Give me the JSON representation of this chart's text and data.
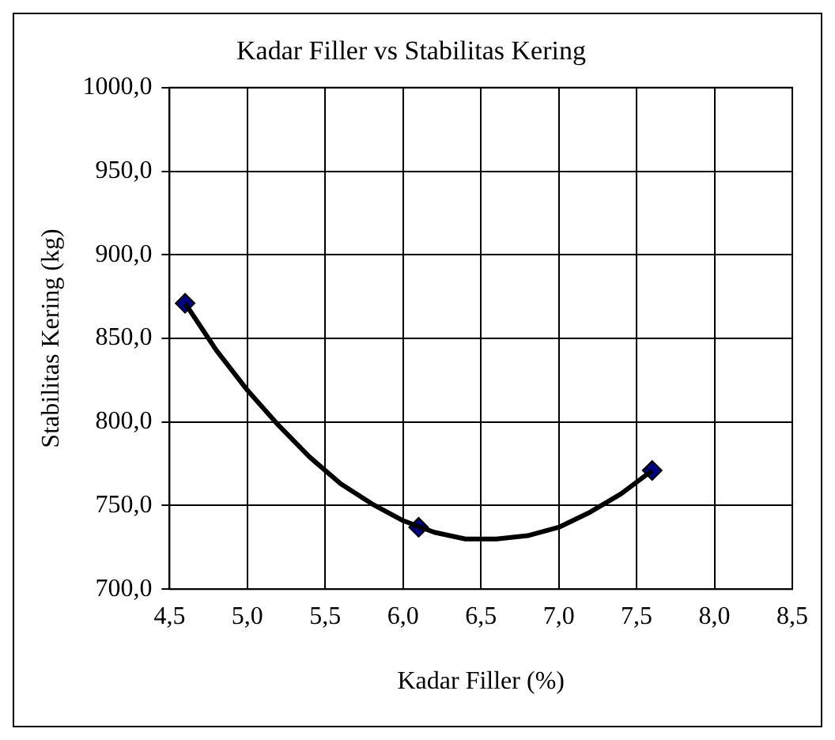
{
  "chart_data": {
    "type": "line",
    "title": "Kadar Filler vs Stabilitas Kering",
    "xlabel": "Kadar Filler (%)",
    "ylabel": "Stabilitas Kering (kg)",
    "xlim": [
      4.5,
      8.5
    ],
    "xticks": [
      {
        "value": 4.5,
        "label": "4,5"
      },
      {
        "value": 5,
        "label": "5,0"
      },
      {
        "value": 5.5,
        "label": "5,5"
      },
      {
        "value": 6,
        "label": "6,0"
      },
      {
        "value": 6.5,
        "label": "6,5"
      },
      {
        "value": 7,
        "label": "7,0"
      },
      {
        "value": 7.5,
        "label": "7,5"
      },
      {
        "value": 8,
        "label": "8,0"
      },
      {
        "value": 8.5,
        "label": "8,5"
      }
    ],
    "ylim": [
      700,
      1000
    ],
    "yticks": [
      {
        "value": 700,
        "label": "700,0"
      },
      {
        "value": 750,
        "label": "750,0"
      },
      {
        "value": 800,
        "label": "800,0"
      },
      {
        "value": 850,
        "label": "850,0"
      },
      {
        "value": 900,
        "label": "900,0"
      },
      {
        "value": 950,
        "label": "950,0"
      },
      {
        "value": 1000,
        "label": "1000,0"
      }
    ],
    "grid": true,
    "legend": false,
    "series": [
      {
        "type": "line",
        "color": "#000000",
        "marker": "none",
        "x": [
          4.6,
          4.8,
          5.0,
          5.2,
          5.4,
          5.6,
          5.8,
          6.0,
          6.2,
          6.4,
          6.6,
          6.8,
          7.0,
          7.2,
          7.4,
          7.6
        ],
        "values": [
          871,
          843,
          819,
          798,
          779,
          763,
          751,
          741,
          734,
          730,
          730,
          732,
          737,
          746,
          757,
          771
        ]
      },
      {
        "type": "scatter",
        "color": "#000080",
        "marker": "diamond",
        "x": [
          4.6,
          6.1,
          7.6
        ],
        "values": [
          871,
          737,
          771
        ]
      }
    ]
  }
}
